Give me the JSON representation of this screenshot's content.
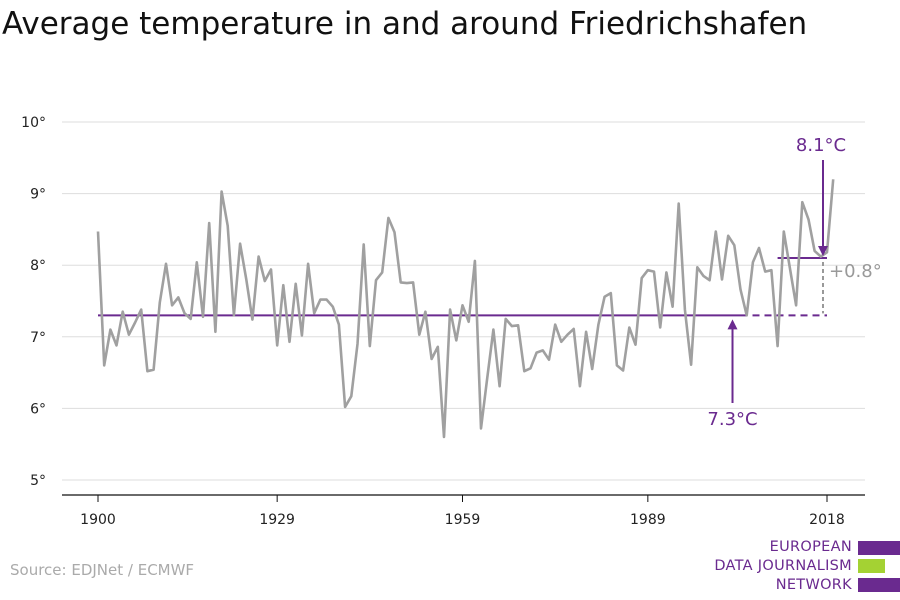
{
  "title": "Average temperature in and around Friedrichshafen",
  "source": "Source: EDJNet / ECMWF",
  "logo": {
    "lines": [
      "EUROPEAN",
      "DATA JOURNALISM",
      "NETWORK"
    ],
    "colors": {
      "purple": "#6a2a8f",
      "green": "#a4d233"
    }
  },
  "colors": {
    "line": "#a0a0a0",
    "purple": "#6a2a8f",
    "grid": "#dddddd",
    "annotation_gray": "#999999"
  },
  "chart_data": {
    "type": "line",
    "title": "Average temperature in and around Friedrichshafen",
    "xlabel": "",
    "ylabel": "",
    "xlim": [
      1900,
      2018
    ],
    "ylim": [
      5,
      10
    ],
    "y_ticks": [
      5,
      6,
      7,
      8,
      9,
      10
    ],
    "y_tick_labels": [
      "5°",
      "6°",
      "7°",
      "8°",
      "9°",
      "10°"
    ],
    "x_ticks": [
      1900,
      1929,
      1959,
      1989,
      2018
    ],
    "x_tick_labels": [
      "1900",
      "1929",
      "1959",
      "1989",
      "2018"
    ],
    "grid": true,
    "series": [
      {
        "x": [
          1900,
          1901,
          1902,
          1903,
          1904,
          1905,
          1906,
          1907,
          1908,
          1909,
          1910,
          1911,
          1912,
          1913,
          1914,
          1915,
          1916,
          1917,
          1918,
          1919,
          1920,
          1921,
          1922,
          1923,
          1924,
          1925,
          1926,
          1927,
          1928,
          1929,
          1930,
          1931,
          1932,
          1933,
          1934,
          1935,
          1936,
          1937,
          1938,
          1939,
          1940,
          1941,
          1942,
          1943,
          1944,
          1945,
          1946,
          1947,
          1948,
          1949,
          1950,
          1951,
          1952,
          1953,
          1954,
          1955,
          1956,
          1957,
          1958,
          1959,
          1960,
          1961,
          1962,
          1963,
          1964,
          1965,
          1966,
          1967,
          1968,
          1969,
          1970,
          1971,
          1972,
          1973,
          1974,
          1975,
          1976,
          1977,
          1978,
          1979,
          1980,
          1981,
          1982,
          1983,
          1984,
          1985,
          1986,
          1987,
          1988,
          1989,
          1990,
          1991,
          1992,
          1993,
          1994,
          1995,
          1996,
          1997,
          1998,
          1999,
          2000,
          2001,
          2002,
          2003,
          2004,
          2005,
          2006,
          2007,
          2008,
          2009,
          2010,
          2011,
          2012,
          2013,
          2014,
          2015,
          2016,
          2017,
          2018,
          2019
        ],
        "values": [
          8.47,
          6.6,
          7.1,
          6.88,
          7.35,
          7.03,
          7.2,
          7.38,
          6.52,
          6.54,
          7.48,
          8.02,
          7.44,
          7.55,
          7.33,
          7.25,
          8.04,
          7.28,
          8.59,
          7.07,
          9.03,
          8.55,
          7.3,
          8.3,
          7.8,
          7.24,
          8.12,
          7.78,
          7.94,
          6.88,
          7.72,
          6.93,
          7.74,
          7.02,
          8.02,
          7.33,
          7.52,
          7.52,
          7.42,
          7.17,
          6.02,
          6.17,
          6.9,
          8.29,
          6.87,
          7.79,
          7.9,
          8.66,
          8.46,
          7.76,
          7.75,
          7.76,
          7.03,
          7.35,
          6.69,
          6.86,
          5.6,
          7.38,
          6.95,
          7.44,
          7.21,
          8.06,
          5.72,
          6.42,
          7.1,
          6.31,
          7.25,
          7.15,
          7.16,
          6.52,
          6.56,
          6.78,
          6.81,
          6.68,
          7.17,
          6.93,
          7.03,
          7.11,
          6.31,
          7.07,
          6.55,
          7.17,
          7.56,
          7.61,
          6.6,
          6.53,
          7.13,
          6.89,
          7.82,
          7.93,
          7.91,
          7.13,
          7.9,
          7.42,
          8.86,
          7.38,
          6.61,
          7.97,
          7.85,
          7.79,
          8.47,
          7.8,
          8.41,
          8.28,
          7.66,
          7.3,
          8.04,
          8.24,
          7.91,
          7.93,
          6.87,
          8.47,
          7.96,
          7.44,
          8.88,
          8.64,
          8.2,
          8.12,
          8.18,
          9.2
        ]
      }
    ],
    "reference_lines": [
      {
        "from": 1900,
        "to": 2004,
        "value": 7.3,
        "style": "solid"
      },
      {
        "from": 2004,
        "to": 2018,
        "value": 7.3,
        "style": "dashed"
      },
      {
        "from": 2010,
        "to": 2018,
        "value": 8.1,
        "style": "solid"
      }
    ],
    "annotations": {
      "recent_label": "8.1°C",
      "baseline_label": "7.3°C",
      "difference_label": "+0.8°"
    }
  }
}
